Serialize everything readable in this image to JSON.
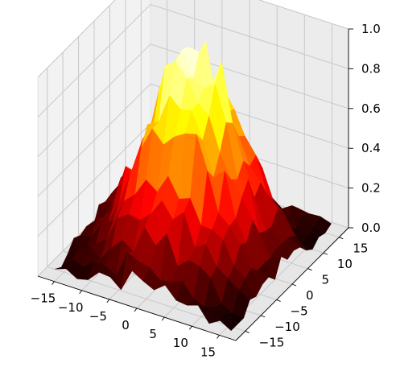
{
  "chart_data": {
    "type": "surface3d",
    "title": "",
    "colormap": "hot",
    "background_pane_color": "#f2f2f2",
    "grid": true,
    "x_axis": {
      "label": "",
      "range": [
        -18,
        18
      ],
      "ticks": [
        {
          "value": -15,
          "label": "−15"
        },
        {
          "value": -10,
          "label": "−10"
        },
        {
          "value": -5,
          "label": "−5"
        },
        {
          "value": 0,
          "label": "0"
        },
        {
          "value": 5,
          "label": "5"
        },
        {
          "value": 10,
          "label": "10"
        },
        {
          "value": 15,
          "label": "15"
        }
      ]
    },
    "y_axis": {
      "label": "",
      "range": [
        -18,
        18
      ],
      "ticks": [
        {
          "value": -15,
          "label": "−15"
        },
        {
          "value": -10,
          "label": "−10"
        },
        {
          "value": -5,
          "label": "−5"
        },
        {
          "value": 0,
          "label": "0"
        },
        {
          "value": 5,
          "label": "5"
        },
        {
          "value": 10,
          "label": "10"
        },
        {
          "value": 15,
          "label": "15"
        }
      ]
    },
    "z_axis": {
      "label": "",
      "range": [
        0,
        1
      ],
      "ticks": [
        {
          "value": 0.0,
          "label": "0.0"
        },
        {
          "value": 0.2,
          "label": "0.2"
        },
        {
          "value": 0.4,
          "label": "0.4"
        },
        {
          "value": 0.6,
          "label": "0.6"
        },
        {
          "value": 0.8,
          "label": "0.8"
        },
        {
          "value": 1.0,
          "label": "1.0"
        }
      ]
    },
    "surface": {
      "description_of_shape": "noisy radial bump, peak ~1.0 at center decaying toward 0 at |r|~15",
      "grid_range": [
        -16,
        16
      ],
      "grid_step": 2,
      "peak_value": 1.0,
      "noise_amplitude": 0.12
    }
  }
}
